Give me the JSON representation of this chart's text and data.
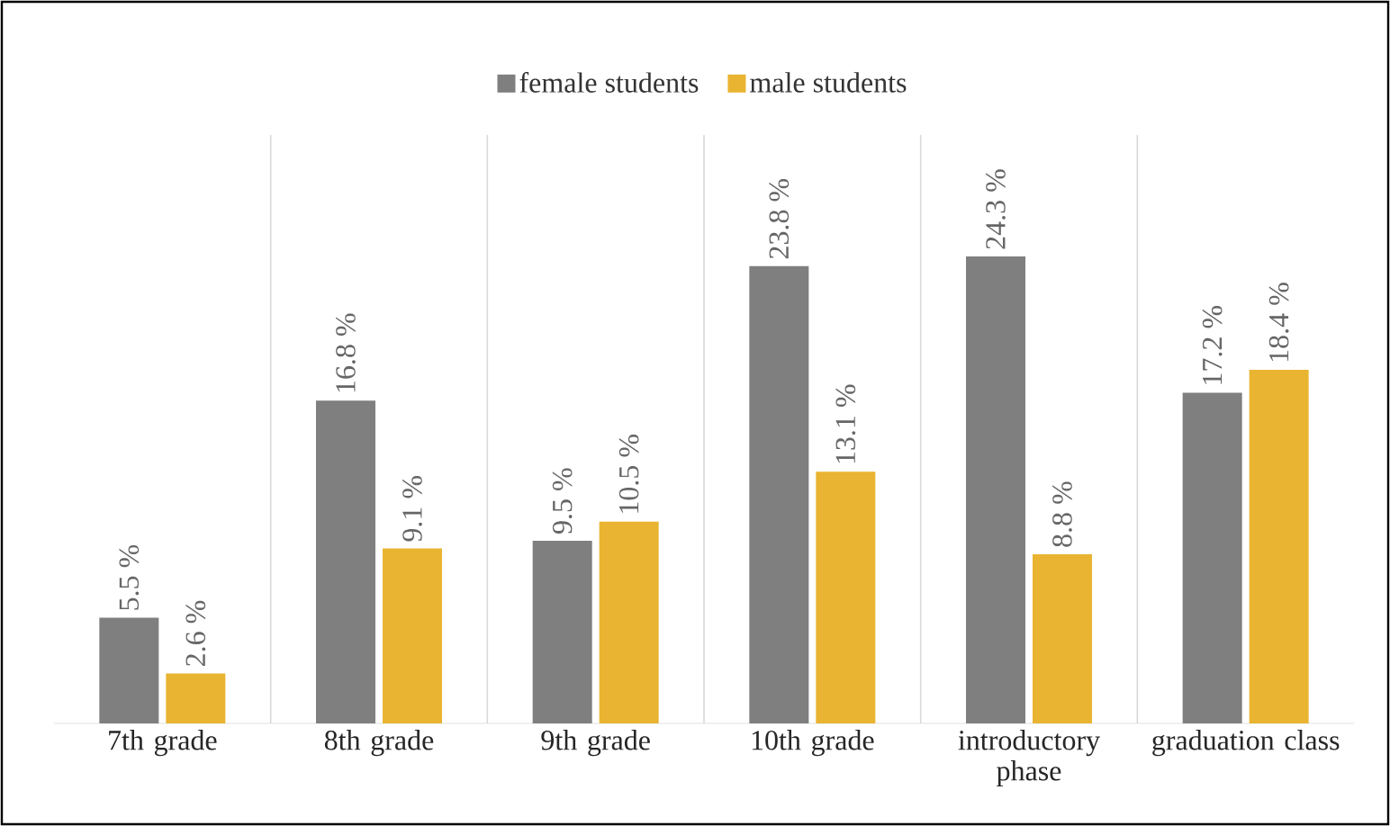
{
  "chart_data": {
    "type": "bar",
    "categories": [
      "7th grade",
      "8th grade",
      "9th grade",
      "10th grade",
      "introductory phase",
      "graduation class"
    ],
    "series": [
      {
        "name": "female students",
        "color": "#7f7f7f",
        "values": [
          5.5,
          16.8,
          9.5,
          23.8,
          24.3,
          17.2
        ],
        "value_labels": [
          "5.5 %",
          "16.8 %",
          "9.5 %",
          "23.8 %",
          "24.3 %",
          "17.2 %"
        ]
      },
      {
        "name": "male students",
        "color": "#e9b431",
        "values": [
          2.6,
          9.1,
          10.5,
          13.1,
          8.8,
          18.4
        ],
        "value_labels": [
          "2.6 %",
          "9.1 %",
          "10.5 %",
          "13.1 %",
          "8.8 %",
          "18.4 %"
        ]
      }
    ],
    "legend": "top",
    "grid": "x"
  }
}
